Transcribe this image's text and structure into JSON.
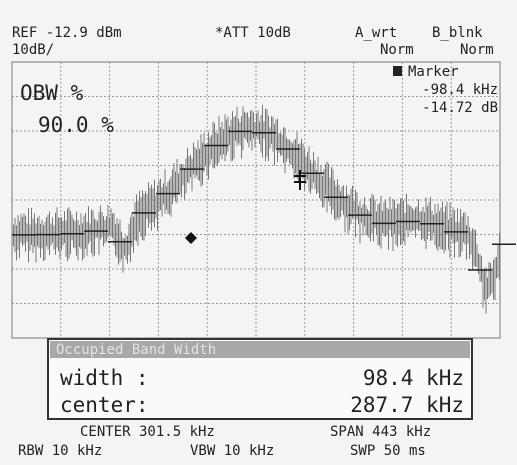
{
  "header": {
    "ref": "REF -12.9 dBm",
    "att": "*ATT 10dB",
    "trace_a": "A_wrt",
    "trace_b": "B_blnk",
    "scale": "10dB/",
    "mode_a": "Norm",
    "mode_b": "Norm"
  },
  "obw": {
    "label": "OBW %",
    "value": "90.0 %"
  },
  "marker": {
    "label": "Marker",
    "freq": "-98.4 kHz",
    "level": "-14.72 dB"
  },
  "result": {
    "title": "Occupied Band Width",
    "rows": [
      [
        "width :",
        "98.4 kHz"
      ],
      [
        "center:",
        "287.7 kHz"
      ]
    ]
  },
  "footer": {
    "center": "CENTER 301.5 kHz",
    "span": "SPAN 443 kHz",
    "rbw": "RBW 10 kHz",
    "vbw": "VBW 10 kHz",
    "swp": "SWP 50 ms"
  }
}
